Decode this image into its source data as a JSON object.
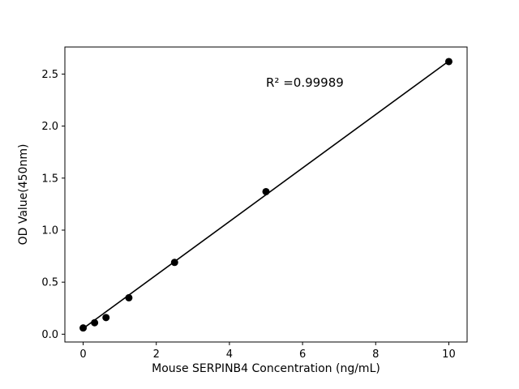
{
  "chart_data": {
    "type": "scatter",
    "title": "",
    "xlabel": "Mouse SERPINB4 Concentration (ng/mL)",
    "ylabel": "OD Value(450nm)",
    "annotation": "R² =0.99989",
    "x": [
      0,
      0.3125,
      0.625,
      1.25,
      2.5,
      5,
      10
    ],
    "y": [
      0.06,
      0.11,
      0.16,
      0.35,
      0.69,
      1.37,
      2.62
    ],
    "fit_line": {
      "x": [
        0,
        10
      ],
      "y": [
        0.055,
        2.625
      ]
    },
    "xlim": [
      -0.5,
      10.5
    ],
    "ylim": [
      -0.075,
      2.76
    ],
    "xticks": [
      0,
      2,
      4,
      6,
      8,
      10
    ],
    "xtick_labels": [
      "0",
      "2",
      "4",
      "6",
      "8",
      "10"
    ],
    "yticks": [
      0.0,
      0.5,
      1.0,
      1.5,
      2.0,
      2.5
    ],
    "ytick_labels": [
      "0.0",
      "0.5",
      "1.0",
      "1.5",
      "2.0",
      "2.5"
    ],
    "grid": false,
    "legend": "none",
    "marker_color": "#000000",
    "line_color": "#000000",
    "background_color": "#ffffff"
  }
}
